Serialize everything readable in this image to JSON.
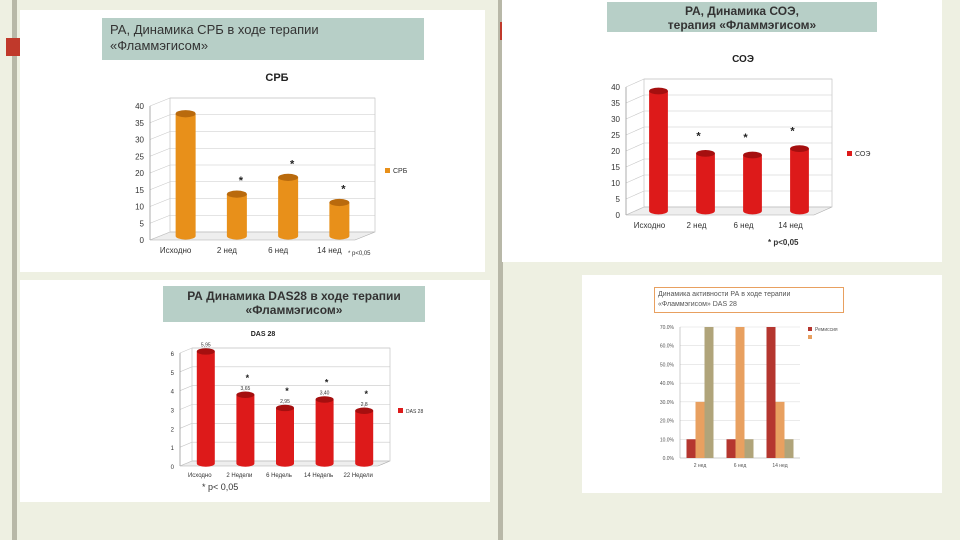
{
  "slide": {
    "panel1": {
      "header_line1": "РА, Динамика СРБ в ходе терапии",
      "header_line2": "«Фламмэгисом»"
    },
    "panel2": {
      "header_line1": "РА, Динамика СОЭ,",
      "header_line2": "терапия «Фламмэгисом»",
      "note": "* p<0,05"
    },
    "panel3": {
      "header_line1": "РА Динамика DAS28 в ходе терапии",
      "header_line2": "«Фламмэгисом»",
      "note": "* p< 0,05"
    },
    "panel4": {
      "header_line1": "Динамика активности РА в ходе терапии",
      "header_line2": "«Фламмэгисом» DAS 28"
    },
    "colors": {
      "orange": "#e8901a",
      "red": "#dd1a1a",
      "dark_red": "#b5362f",
      "light_orange": "#e8a060",
      "khaki": "#b0a47a",
      "header_box": "#b7cfc7"
    }
  },
  "chart_data": [
    {
      "type": "bar",
      "title": "СРБ",
      "categories": [
        "Исходно",
        "2 нед",
        "6 нед",
        "14 нед"
      ],
      "series": [
        {
          "name": "СРБ",
          "values": [
            36.5,
            12.5,
            17.5,
            10
          ]
        }
      ],
      "significance": [
        "",
        "*",
        "*",
        "*"
      ],
      "y_ticks": [
        "0",
        "5",
        "10",
        "15",
        "20",
        "25",
        "30",
        "35",
        "40"
      ],
      "ylim": [
        0,
        40
      ],
      "footnote": "* p<0,05",
      "legend": "right",
      "grid": true
    },
    {
      "type": "bar",
      "title": "СОЭ",
      "categories": [
        "Исходно",
        "2 нед",
        "6 нед",
        "14 нед"
      ],
      "series": [
        {
          "name": "СОЭ",
          "values": [
            37.5,
            18,
            17.5,
            19.5
          ]
        }
      ],
      "significance": [
        "",
        "*",
        "*",
        "*"
      ],
      "y_ticks": [
        "0",
        "5",
        "10",
        "15",
        "20",
        "25",
        "30",
        "35",
        "40"
      ],
      "ylim": [
        0,
        40
      ],
      "legend": "right",
      "grid": true
    },
    {
      "type": "bar",
      "title": "DAS 28",
      "categories": [
        "Исходно",
        "2 Недели",
        "6 Недель",
        "14 Недель",
        "22 Недели"
      ],
      "series": [
        {
          "name": "DAS 28",
          "values": [
            5.95,
            3.65,
            2.95,
            3.4,
            2.8
          ]
        }
      ],
      "data_labels": [
        "5,95",
        "3,65",
        "2,95",
        "3,40",
        "2,8"
      ],
      "significance": [
        "",
        "*",
        "*",
        "*",
        "*"
      ],
      "y_ticks": [
        "0",
        "1",
        "2",
        "3",
        "4",
        "5",
        "6"
      ],
      "ylim": [
        0,
        6
      ],
      "legend": "right",
      "grid": true
    },
    {
      "type": "bar",
      "categories": [
        "2 нед",
        "6 нед",
        "14 нед"
      ],
      "series": [
        {
          "name": "Ремиссия",
          "values": [
            10,
            10,
            70
          ]
        },
        {
          "name": "",
          "values": [
            30,
            70,
            30
          ]
        },
        {
          "name": "",
          "values": [
            70,
            10,
            10
          ]
        }
      ],
      "y_ticks": [
        "0.0%",
        "10.0%",
        "20.0%",
        "30.0%",
        "40.0%",
        "50.0%",
        "60.0%",
        "70.0%"
      ],
      "ylim": [
        0,
        70
      ],
      "legend": "top-right",
      "grid": true
    }
  ]
}
